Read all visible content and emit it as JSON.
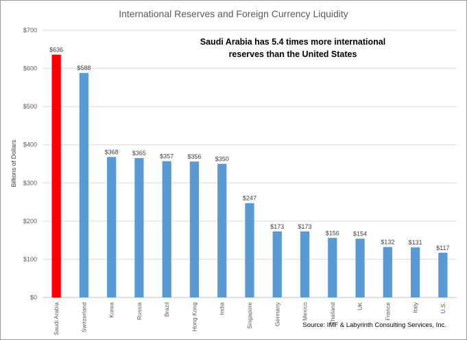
{
  "chart_data": {
    "type": "bar",
    "title": "International Reserves and Foreign Currency Liquidity",
    "annotation_lines": [
      "Saudi Arabia has 5.4 times more international",
      "reserves than the United States"
    ],
    "ylabel": "Billions of Dollars",
    "xlabel": "",
    "ylim": [
      0,
      700
    ],
    "yticks": [
      0,
      100,
      200,
      300,
      400,
      500,
      600,
      700
    ],
    "ytick_labels": [
      "$0",
      "$100",
      "$200",
      "$300",
      "$400",
      "$500",
      "$600",
      "$700"
    ],
    "grid": true,
    "categories": [
      "Saudi Arabia",
      "Switzerland",
      "Korea",
      "Russia",
      "Brazil",
      "Hong Kong",
      "India",
      "Singapore",
      "Germany",
      "Mexico",
      "Thailand",
      "UK",
      "France",
      "Italy",
      "U.S."
    ],
    "values": [
      636,
      588,
      368,
      365,
      357,
      356,
      350,
      247,
      173,
      173,
      156,
      154,
      132,
      131,
      117
    ],
    "value_labels": [
      "$636",
      "$588",
      "$368",
      "$365",
      "$357",
      "$356",
      "$350",
      "$247",
      "$173",
      "$173",
      "$156",
      "$154",
      "$132",
      "$131",
      "$117"
    ],
    "colors": [
      "#ff0000",
      "#5b9bd5",
      "#5b9bd5",
      "#5b9bd5",
      "#5b9bd5",
      "#5b9bd5",
      "#5b9bd5",
      "#5b9bd5",
      "#5b9bd5",
      "#5b9bd5",
      "#5b9bd5",
      "#5b9bd5",
      "#5b9bd5",
      "#5b9bd5",
      "#5b9bd5"
    ],
    "source": "Source:  IMF & Labyrinth Consulting  Services, Inc."
  }
}
